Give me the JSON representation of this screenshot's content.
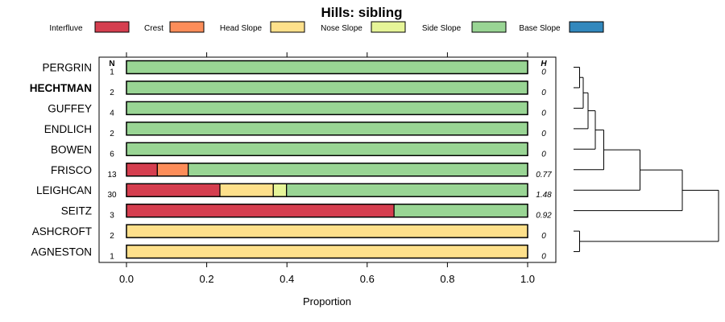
{
  "chart_data": {
    "type": "bar",
    "stacked": true,
    "orientation": "horizontal",
    "title": "Hills: sibling",
    "xlabel": "Proportion",
    "xlim": [
      0,
      1
    ],
    "xticks": [
      0.0,
      0.2,
      0.4,
      0.6,
      0.8,
      1.0
    ],
    "xtick_labels": [
      "0.0",
      "0.2",
      "0.4",
      "0.6",
      "0.8",
      "1.0"
    ],
    "n_header": "N",
    "h_header": "H",
    "legend_position": "top",
    "legend": [
      {
        "name": "Interfluve",
        "color": "#d53e4f"
      },
      {
        "name": "Crest",
        "color": "#fc8d59"
      },
      {
        "name": "Head Slope",
        "color": "#fee08b"
      },
      {
        "name": "Nose Slope",
        "color": "#e6f598"
      },
      {
        "name": "Side Slope",
        "color": "#99d594"
      },
      {
        "name": "Base Slope",
        "color": "#3288bd"
      }
    ],
    "rows": [
      {
        "name": "PERGRIN",
        "n": "1",
        "h": "0",
        "bold": false,
        "values": [
          0,
          0,
          0,
          0,
          1,
          0
        ]
      },
      {
        "name": "HECHTMAN",
        "n": "2",
        "h": "0",
        "bold": true,
        "values": [
          0,
          0,
          0,
          0,
          1,
          0
        ]
      },
      {
        "name": "GUFFEY",
        "n": "4",
        "h": "0",
        "bold": false,
        "values": [
          0,
          0,
          0,
          0,
          1,
          0
        ]
      },
      {
        "name": "ENDLICH",
        "n": "2",
        "h": "0",
        "bold": false,
        "values": [
          0,
          0,
          0,
          0,
          1,
          0
        ]
      },
      {
        "name": "BOWEN",
        "n": "6",
        "h": "0",
        "bold": false,
        "values": [
          0,
          0,
          0,
          0,
          1,
          0
        ]
      },
      {
        "name": "FRISCO",
        "n": "13",
        "h": "0.77",
        "bold": false,
        "values": [
          0.077,
          0.077,
          0,
          0,
          0.846,
          0
        ]
      },
      {
        "name": "LEIGHCAN",
        "n": "30",
        "h": "1.48",
        "bold": false,
        "values": [
          0.233,
          0,
          0.133,
          0.033,
          0.601,
          0
        ]
      },
      {
        "name": "SEITZ",
        "n": "3",
        "h": "0.92",
        "bold": false,
        "values": [
          0.667,
          0,
          0,
          0,
          0.333,
          0
        ]
      },
      {
        "name": "ASHCROFT",
        "n": "2",
        "h": "0",
        "bold": false,
        "values": [
          0,
          0,
          1,
          0,
          0,
          0
        ]
      },
      {
        "name": "AGNESTON",
        "n": "1",
        "h": "0",
        "bold": false,
        "values": [
          0,
          0,
          1,
          0,
          0,
          0
        ]
      }
    ],
    "dendrogram": {
      "leaves_order": [
        "PERGRIN",
        "HECHTMAN",
        "GUFFEY",
        "ENDLICH",
        "BOWEN",
        "FRISCO",
        "LEIGHCAN",
        "SEITZ",
        "ASHCROFT",
        "AGNESTON"
      ],
      "merges": [
        {
          "a": "L0",
          "b": "L1",
          "height": 0.05
        },
        {
          "a": "M0",
          "b": "L2",
          "height": 0.08
        },
        {
          "a": "M1",
          "b": "L3",
          "height": 0.12
        },
        {
          "a": "M2",
          "b": "L4",
          "height": 0.18
        },
        {
          "a": "M3",
          "b": "L5",
          "height": 0.25
        },
        {
          "a": "M4",
          "b": "L6",
          "height": 0.55
        },
        {
          "a": "M5",
          "b": "L7",
          "height": 0.9
        },
        {
          "a": "L8",
          "b": "L9",
          "height": 0.05
        },
        {
          "a": "M6",
          "b": "M7",
          "height": 1.2
        }
      ]
    }
  }
}
